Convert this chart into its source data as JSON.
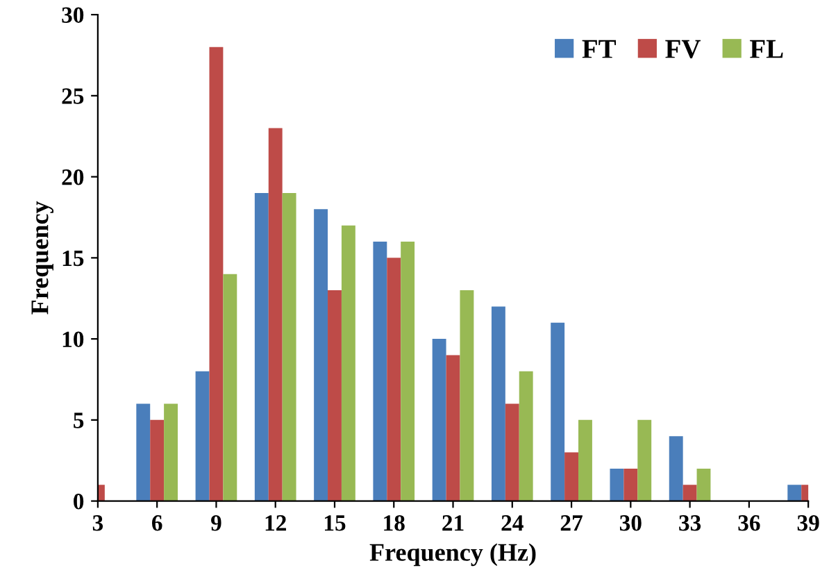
{
  "chart_data": {
    "type": "bar",
    "xlabel": "Frequency (Hz)",
    "ylabel": "Frequency",
    "x": [
      3,
      6,
      9,
      12,
      15,
      18,
      21,
      24,
      27,
      30,
      33,
      36,
      39
    ],
    "series": [
      {
        "name": "FT",
        "color": "#4a7ebb",
        "values": [
          null,
          6,
          8,
          19,
          18,
          16,
          10,
          12,
          11,
          2,
          4,
          0,
          1
        ]
      },
      {
        "name": "FV",
        "color": "#be4b48",
        "values": [
          1,
          5,
          28,
          23,
          13,
          15,
          9,
          6,
          3,
          2,
          1,
          0,
          1
        ]
      },
      {
        "name": "FL",
        "color": "#98b954",
        "values": [
          null,
          6,
          14,
          19,
          17,
          16,
          13,
          8,
          5,
          5,
          2,
          0,
          null
        ]
      }
    ],
    "xlim": [
      3,
      39
    ],
    "xticks": [
      3,
      6,
      9,
      12,
      15,
      18,
      21,
      24,
      27,
      30,
      33,
      36,
      39
    ],
    "ylim": [
      0,
      30
    ],
    "yticks": [
      0,
      5,
      10,
      15,
      20,
      25,
      30
    ],
    "grid": false,
    "legend": "top right"
  }
}
